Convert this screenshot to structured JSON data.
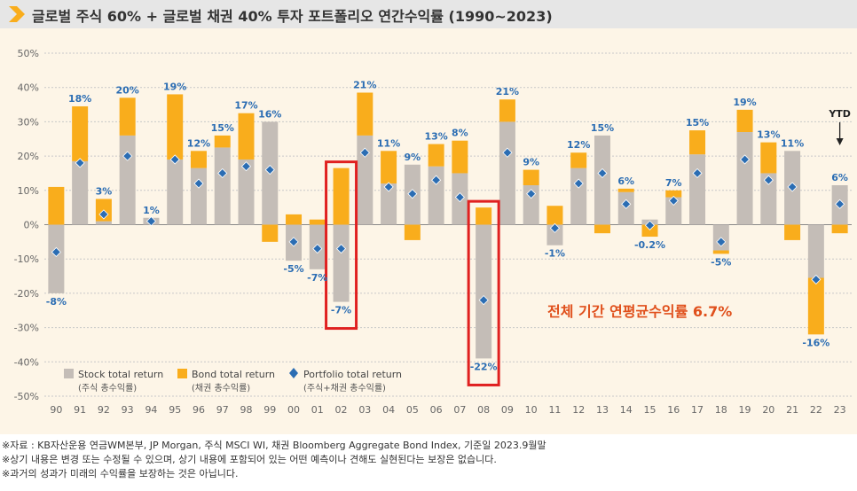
{
  "title": "글로벌 주식 60% + 글로벌 채권 40% 투자 포트폴리오 연간수익률 (1990~2023)",
  "annotation": "전체 기간 연평균수익률  6.7%",
  "ytd_label": "YTD",
  "colors": {
    "stock": "#c4bdb7",
    "bond": "#f9ad1c",
    "portfolio": "#2b6db3",
    "label": "#2b6db3",
    "highlight": "#e02020",
    "annotation": "#e0501c",
    "axis_text": "#666666",
    "grid": "#c8c8c8"
  },
  "legend": [
    {
      "label": "Stock total return",
      "sub": "(주식 총수익률)"
    },
    {
      "label": "Bond total return",
      "sub": "(채권 총수익률)"
    },
    {
      "label": "Portfolio total return",
      "sub": "(주식+채권 총수익률)"
    }
  ],
  "footnotes": [
    "※자료 : KB자산운용 연금WM본부, JP Morgan, 주식 MSCI WI, 채권 Bloomberg Aggregate Bond Index, 기준일 2023.9월말",
    "※상기 내용은 변경 또는 수정될 수 있으며, 상기 내용에 포함되어 있는 어떤 예측이나 견해도 실현된다는 보장은 없습니다.",
    "※과거의 성과가 미래의 수익률을 보장하는 것은 아닙니다."
  ],
  "chart_data": {
    "type": "bar",
    "categories": [
      "90",
      "91",
      "92",
      "93",
      "94",
      "95",
      "96",
      "97",
      "98",
      "99",
      "00",
      "01",
      "02",
      "03",
      "04",
      "05",
      "06",
      "07",
      "08",
      "09",
      "10",
      "11",
      "12",
      "13",
      "14",
      "15",
      "16",
      "17",
      "18",
      "19",
      "20",
      "21",
      "22",
      "23"
    ],
    "ylim": [
      -50,
      50
    ],
    "yticks": [
      "-50%",
      "-40%",
      "-30%",
      "-20%",
      "-10%",
      "0%",
      "10%",
      "20%",
      "30%",
      "40%",
      "50%"
    ],
    "series": [
      {
        "name": "Stock total return",
        "values": [
          -20,
          18.5,
          1,
          26,
          2,
          19,
          16.5,
          22.5,
          19,
          30,
          -10.5,
          -13,
          -22.5,
          26,
          12,
          17.5,
          17,
          15,
          -39,
          30,
          11.5,
          -6,
          16.5,
          26,
          9.5,
          1.5,
          8,
          20.5,
          -7.5,
          27,
          15,
          21.5,
          -15.5,
          11.5
        ]
      },
      {
        "name": "Bond total return",
        "values": [
          11,
          16,
          6.5,
          11,
          0,
          19,
          5,
          3.5,
          13.5,
          -5,
          3,
          1.5,
          16.5,
          12.5,
          9.5,
          -4.5,
          6.5,
          9.5,
          5,
          6.5,
          4.5,
          5.5,
          4.5,
          -2.5,
          1,
          -3.5,
          2,
          7,
          -1,
          6.5,
          9,
          -4.5,
          -16.5,
          -2.5
        ]
      },
      {
        "name": "Portfolio total return",
        "values": [
          -8,
          18,
          3,
          20,
          1,
          19,
          12,
          15,
          17,
          16,
          -5,
          -7,
          -7,
          21,
          11,
          9,
          13,
          8,
          -22,
          21,
          9,
          -1,
          12,
          15,
          6,
          -0.2,
          7,
          15,
          -5,
          19,
          13,
          11,
          -16,
          6
        ]
      }
    ],
    "data_labels": [
      "-8%",
      "18%",
      "3%",
      "20%",
      "1%",
      "19%",
      "12%",
      "15%",
      "17%",
      "16%",
      "-5%",
      "-7%",
      "-7%",
      "21%",
      "11%",
      "9%",
      "13%",
      "8%",
      "-22%",
      "21%",
      "9%",
      "-1%",
      "12%",
      "15%",
      "6%",
      "-0.2%",
      "7%",
      "15%",
      "-5%",
      "19%",
      "13%",
      "11%",
      "-16%",
      "6%"
    ],
    "highlighted_categories": [
      "02",
      "08"
    ],
    "ytd_category": "23"
  }
}
